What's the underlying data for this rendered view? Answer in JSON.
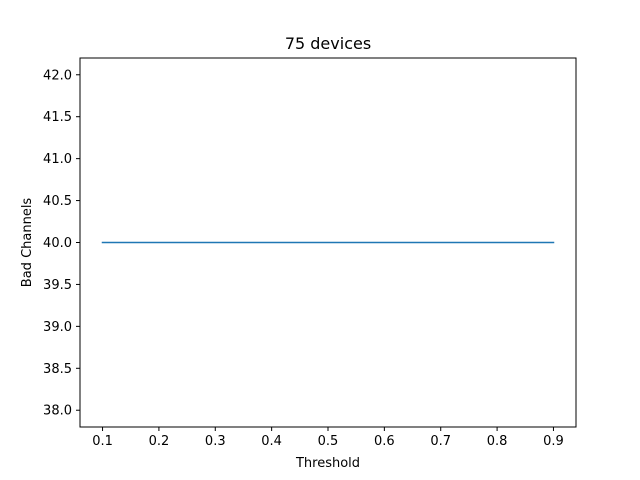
{
  "chart_data": {
    "type": "line",
    "title": "75 devices",
    "xlabel": "Threshold",
    "ylabel": "Bad Channels",
    "xlim": [
      0.06,
      0.94
    ],
    "ylim": [
      37.8,
      42.2
    ],
    "xticks": [
      0.1,
      0.2,
      0.3,
      0.4,
      0.5,
      0.6,
      0.7,
      0.8,
      0.9
    ],
    "xtick_labels": [
      "0.1",
      "0.2",
      "0.3",
      "0.4",
      "0.5",
      "0.6",
      "0.7",
      "0.8",
      "0.9"
    ],
    "yticks": [
      38.0,
      38.5,
      39.0,
      39.5,
      40.0,
      40.5,
      41.0,
      41.5,
      42.0
    ],
    "ytick_labels": [
      "38.0",
      "38.5",
      "39.0",
      "39.5",
      "40.0",
      "40.5",
      "41.0",
      "41.5",
      "42.0"
    ],
    "grid": false,
    "series": [
      {
        "color": "#1f77b4",
        "x": [
          0.1,
          0.2,
          0.3,
          0.4,
          0.5,
          0.6,
          0.7,
          0.8,
          0.9
        ],
        "y": [
          40,
          40,
          40,
          40,
          40,
          40,
          40,
          40,
          40
        ]
      }
    ]
  }
}
